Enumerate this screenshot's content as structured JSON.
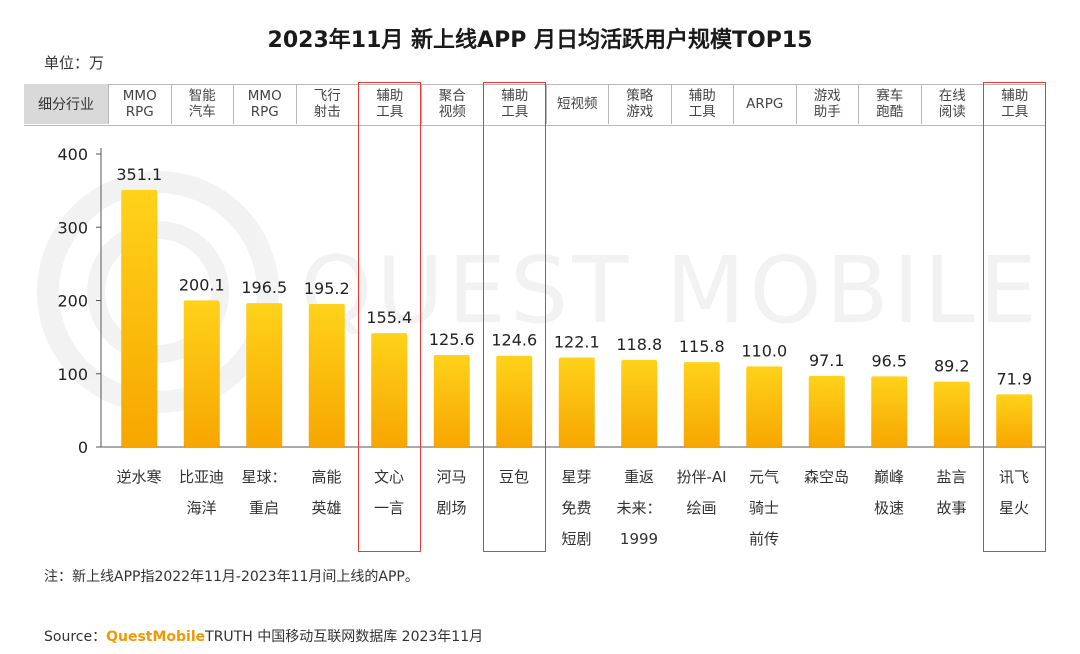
{
  "title": "2023年11月 新上线APP 月日均活跃用户规模TOP15",
  "unit_label": "单位：万",
  "category_header": "细分行业",
  "watermark": "QUEST MOBILE",
  "colors": {
    "bar_top": "#ffd21a",
    "bar_bottom": "#f7a600",
    "highlight": "#e83a3a",
    "brand": "#f39800"
  },
  "chart_data": {
    "type": "bar",
    "title": "2023年11月 新上线APP 月日均活跃用户规模TOP15",
    "ylabel": "单位：万",
    "ylim": [
      0,
      400
    ],
    "yticks": [
      0,
      100,
      200,
      300,
      400
    ],
    "categories": [
      "逆水寒",
      "比亚迪海洋",
      "星球：重启",
      "高能英雄",
      "文心一言",
      "河马剧场",
      "豆包",
      "星芽免费短剧",
      "重返未来：1999",
      "扮伴-AI绘画",
      "元气骑士前传",
      "森空岛",
      "巅峰极速",
      "盐言故事",
      "讯飞星火"
    ],
    "category_lines": [
      "逆水寒",
      "比亚迪\n海洋",
      "星球：\n重启",
      "高能\n英雄",
      "文心\n一言",
      "河马\n剧场",
      "豆包",
      "星芽\n免费\n短剧",
      "重返\n未来：\n1999",
      "扮伴-AI\n绘画",
      "元气\n骑士\n前传",
      "森空岛",
      "巅峰\n极速",
      "盐言\n故事",
      "讯飞\n星火"
    ],
    "industries": [
      "MMO\nRPG",
      "智能\n汽车",
      "MMO\nRPG",
      "飞行\n射击",
      "辅助\n工具",
      "聚合\n视频",
      "辅助\n工具",
      "短视频",
      "策略\n游戏",
      "辅助\n工具",
      "ARPG",
      "游戏\n助手",
      "赛车\n跑酷",
      "在线\n阅读",
      "辅助\n工具"
    ],
    "values": [
      351.1,
      200.1,
      196.5,
      195.2,
      155.4,
      125.6,
      124.6,
      122.1,
      118.8,
      115.8,
      110.0,
      97.1,
      96.5,
      89.2,
      71.9
    ],
    "value_labels": [
      "351.1",
      "200.1",
      "196.5",
      "195.2",
      "155.4",
      "125.6",
      "124.6",
      "122.1",
      "118.8",
      "115.8",
      "110.0",
      "97.1",
      "96.5",
      "89.2",
      "71.9"
    ],
    "highlighted": [
      "文心一言",
      "豆包",
      "讯飞星火"
    ]
  },
  "note": "注：新上线APP指2022年11月-2023年11月间上线的APP。",
  "source": {
    "prefix": "Source：",
    "brand": "QuestMobile",
    "suffix": "TRUTH 中国移动互联网数据库 2023年11月"
  }
}
